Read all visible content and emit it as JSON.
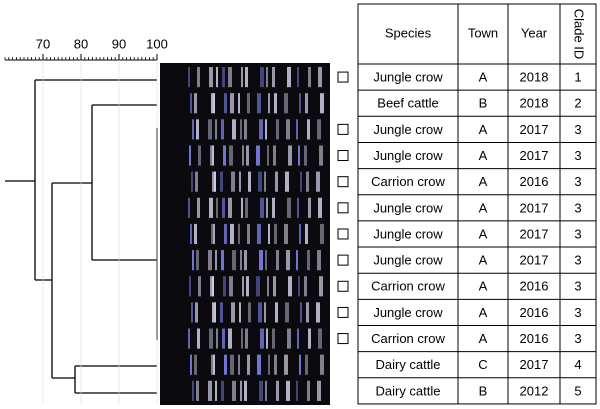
{
  "scale": {
    "xlim": [
      60,
      100
    ],
    "xticks": [
      70,
      80,
      90,
      100
    ]
  },
  "table": {
    "header": [
      "Species",
      "Town",
      "Year",
      "Clade ID"
    ],
    "rows": [
      {
        "box": true,
        "cells": [
          "Jungle crow",
          "A",
          2018,
          1
        ]
      },
      {
        "box": false,
        "cells": [
          "Beef cattle",
          "B",
          2018,
          2
        ]
      },
      {
        "box": true,
        "cells": [
          "Jungle crow",
          "A",
          2017,
          3
        ]
      },
      {
        "box": true,
        "cells": [
          "Jungle crow",
          "A",
          2017,
          3
        ]
      },
      {
        "box": true,
        "cells": [
          "Carrion crow",
          "A",
          2016,
          3
        ]
      },
      {
        "box": true,
        "cells": [
          "Jungle crow",
          "A",
          2017,
          3
        ]
      },
      {
        "box": true,
        "cells": [
          "Jungle crow",
          "A",
          2017,
          3
        ]
      },
      {
        "box": true,
        "cells": [
          "Jungle crow",
          "A",
          2017,
          3
        ]
      },
      {
        "box": true,
        "cells": [
          "Carrion crow",
          "A",
          2016,
          3
        ]
      },
      {
        "box": true,
        "cells": [
          "Jungle crow",
          "A",
          2016,
          3
        ]
      },
      {
        "box": true,
        "cells": [
          "Carrion crow",
          "A",
          2016,
          3
        ]
      },
      {
        "box": false,
        "cells": [
          "Dairy cattle",
          "C",
          2017,
          4
        ]
      },
      {
        "box": false,
        "cells": [
          "Dairy cattle",
          "B",
          2012,
          5
        ]
      }
    ]
  }
}
